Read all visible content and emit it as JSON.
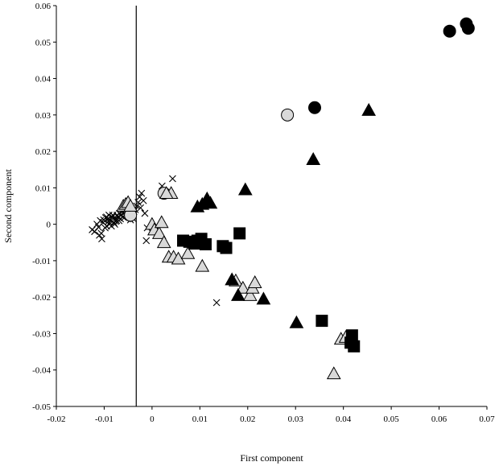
{
  "chart_data": {
    "type": "scatter",
    "title": "",
    "xlabel": "First component",
    "ylabel": "Second component",
    "xlim": [
      -0.02,
      0.07
    ],
    "ylim": [
      -0.05,
      0.06
    ],
    "x_ticks": [
      -0.02,
      -0.01,
      0,
      0.01,
      0.02,
      0.03,
      0.04,
      0.05,
      0.06,
      0.07
    ],
    "x_tick_labels": [
      "-0.02",
      "-0.01",
      "0",
      "0.01",
      "0.02",
      "0.03",
      "0.04",
      "0.05",
      "0.06",
      "0.07"
    ],
    "y_ticks": [
      -0.05,
      -0.04,
      -0.03,
      -0.02,
      -0.01,
      0,
      0.01,
      0.02,
      0.03,
      0.04,
      0.05,
      0.06
    ],
    "y_tick_labels": [
      "-0.05",
      "-0.04",
      "-0.03",
      "-0.02",
      "-0.01",
      "0",
      "0.01",
      "0.02",
      "0.03",
      "0.04",
      "0.05",
      "0.06"
    ],
    "vertical_line_x": -0.0033,
    "grid": false,
    "legend": "none",
    "series": [
      {
        "marker": "cross",
        "color": "#000000",
        "points": [
          [
            -0.0125,
            -0.0015
          ],
          [
            -0.012,
            -0.002
          ],
          [
            -0.0115,
            0.0
          ],
          [
            -0.011,
            -0.003
          ],
          [
            -0.0105,
            -0.004
          ],
          [
            -0.0108,
            0.001
          ],
          [
            -0.0102,
            0.0005
          ],
          [
            -0.0098,
            -0.001
          ],
          [
            -0.0095,
            0.002
          ],
          [
            -0.0092,
            0.0015
          ],
          [
            -0.0089,
            0.0
          ],
          [
            -0.0086,
            0.001
          ],
          [
            -0.0083,
            0.002
          ],
          [
            -0.008,
            0.0005
          ],
          [
            -0.0077,
            0.0015
          ],
          [
            -0.0074,
            0.001
          ],
          [
            -0.0071,
            0.002
          ],
          [
            -0.0068,
            0.003
          ],
          [
            -0.0065,
            0.0025
          ],
          [
            -0.0062,
            0.0035
          ],
          [
            -0.0059,
            0.003
          ],
          [
            -0.0056,
            0.004
          ],
          [
            -0.0053,
            0.0035
          ],
          [
            -0.005,
            0.003
          ],
          [
            -0.0047,
            0.002
          ],
          [
            -0.0044,
            0.0025
          ],
          [
            -0.0041,
            0.003
          ],
          [
            -0.0038,
            0.0035
          ],
          [
            -0.0035,
            0.004
          ],
          [
            -0.0032,
            0.005
          ],
          [
            -0.0029,
            0.006
          ],
          [
            -0.0026,
            0.0075
          ],
          [
            -0.0022,
            0.0085
          ],
          [
            -0.0018,
            0.0065
          ],
          [
            -0.0015,
            0.003
          ],
          [
            -0.0012,
            -0.0045
          ],
          [
            -0.001,
            -0.001
          ],
          [
            -0.0095,
            -0.0005
          ],
          [
            -0.009,
            0.0025
          ],
          [
            -0.0085,
            -0.0005
          ],
          [
            -0.0082,
            0.0025
          ],
          [
            -0.0078,
            0.0
          ],
          [
            -0.0073,
            0.0025
          ],
          [
            -0.0069,
            0.001
          ],
          [
            -0.0066,
            0.0015
          ],
          [
            -0.0061,
            0.002
          ],
          [
            0.0021,
            0.0105
          ],
          [
            0.0038,
            0.0085
          ],
          [
            0.0043,
            0.0125
          ],
          [
            0.0135,
            -0.0215
          ],
          [
            -0.0112,
            -0.0008
          ],
          [
            -0.0101,
            0.0012
          ],
          [
            -0.0091,
            0.0008
          ],
          [
            -0.0076,
            0.0008
          ],
          [
            -0.0058,
            0.0018
          ],
          [
            -0.0045,
            0.0012
          ],
          [
            -0.0039,
            0.0015
          ],
          [
            -0.0024,
            0.0045
          ],
          [
            -0.0106,
            -0.0025
          ],
          [
            -0.0097,
            0.0018
          ]
        ]
      },
      {
        "marker": "circle",
        "color": "#d9d9d9",
        "stroke": "#000000",
        "points": [
          [
            -0.0045,
            0.0025
          ],
          [
            0.0025,
            0.0085
          ],
          [
            0.0283,
            0.03
          ],
          [
            0.0412,
            -0.031
          ]
        ]
      },
      {
        "marker": "circle",
        "color": "#000000",
        "points": [
          [
            0.0657,
            0.055
          ],
          [
            0.0661,
            0.0538
          ],
          [
            0.0622,
            0.053
          ],
          [
            0.034,
            0.032
          ]
        ]
      },
      {
        "marker": "triangle",
        "color": "#d9d9d9",
        "stroke": "#000000",
        "points": [
          [
            -0.006,
            0.005
          ],
          [
            -0.0055,
            0.0055
          ],
          [
            -0.005,
            0.006
          ],
          [
            -0.0045,
            0.005
          ],
          [
            0.0,
            0.0
          ],
          [
            0.0005,
            -0.0015
          ],
          [
            0.0015,
            -0.0025
          ],
          [
            0.0025,
            -0.005
          ],
          [
            0.0035,
            -0.009
          ],
          [
            0.004,
            0.0085
          ],
          [
            0.0045,
            -0.009
          ],
          [
            0.0055,
            -0.0095
          ],
          [
            0.0075,
            -0.008
          ],
          [
            0.0105,
            -0.0115
          ],
          [
            0.0175,
            -0.0155
          ],
          [
            0.019,
            -0.0175
          ],
          [
            0.0205,
            -0.0195
          ],
          [
            0.021,
            -0.0175
          ],
          [
            0.0215,
            -0.016
          ],
          [
            0.0395,
            -0.0315
          ],
          [
            0.0405,
            -0.031
          ],
          [
            0.038,
            -0.041
          ],
          [
            0.002,
            0.0005
          ],
          [
            0.003,
            0.0085
          ]
        ]
      },
      {
        "marker": "triangle",
        "color": "#000000",
        "points": [
          [
            0.0095,
            0.0048
          ],
          [
            0.0105,
            0.0055
          ],
          [
            0.0115,
            0.007
          ],
          [
            0.0122,
            0.0058
          ],
          [
            0.0195,
            0.0095
          ],
          [
            0.0167,
            -0.0152
          ],
          [
            0.018,
            -0.0195
          ],
          [
            0.0233,
            -0.0205
          ],
          [
            0.0302,
            -0.027
          ],
          [
            0.0337,
            0.0178
          ],
          [
            0.0453,
            0.0313
          ]
        ]
      },
      {
        "marker": "square",
        "color": "#000000",
        "points": [
          [
            0.0065,
            -0.0045
          ],
          [
            0.0078,
            -0.0048
          ],
          [
            0.0088,
            -0.0053
          ],
          [
            0.0095,
            -0.0045
          ],
          [
            0.0103,
            -0.004
          ],
          [
            0.0112,
            -0.0055
          ],
          [
            0.0148,
            -0.006
          ],
          [
            0.0155,
            -0.0065
          ],
          [
            0.0183,
            -0.0025
          ],
          [
            0.0355,
            -0.0265
          ],
          [
            0.0418,
            -0.0305
          ],
          [
            0.0415,
            -0.0325
          ],
          [
            0.0422,
            -0.0335
          ]
        ]
      }
    ]
  }
}
